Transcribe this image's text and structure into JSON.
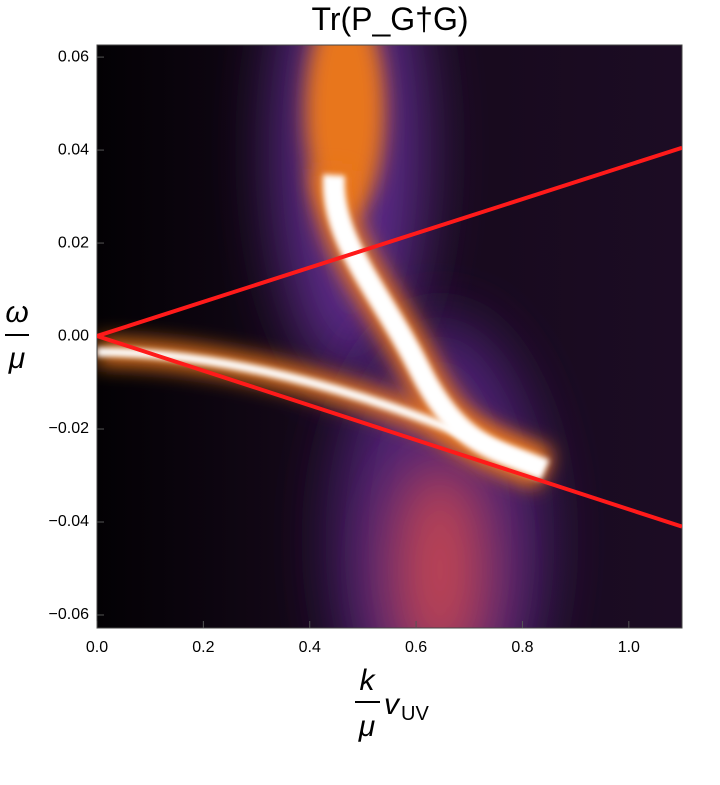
{
  "chart_data": {
    "type": "density",
    "title": "Tr(P_G†G)",
    "xlabel_numerator": "k",
    "xlabel_denominator": "μ",
    "xlabel_symbol": "v",
    "xlabel_subscript": "UV",
    "ylabel_numerator": "ω",
    "ylabel_denominator": "μ",
    "xlim": [
      0,
      1.1
    ],
    "ylim": [
      -0.0628,
      0.0626
    ],
    "xticks": [
      {
        "value": 0,
        "label": "0.0"
      },
      0.2,
      0.4,
      0.6,
      0.8,
      {
        "value": 1,
        "label": "1.0"
      }
    ],
    "yticks": [
      {
        "value": -0.06,
        "label": "−0.06"
      },
      {
        "value": -0.04,
        "label": "−0.04"
      },
      {
        "value": -0.02,
        "label": "−0.02"
      },
      {
        "value": 0,
        "label": "0.00"
      },
      0.02,
      0.04,
      0.06
    ],
    "series": [
      {
        "color": "#ff1a1a",
        "x": [
          0,
          1.1
        ],
        "values": [
          0,
          0.0405
        ]
      },
      {
        "color": "#ff1a1a",
        "x": [
          0,
          1.1
        ],
        "values": [
          0,
          -0.041
        ]
      }
    ]
  }
}
